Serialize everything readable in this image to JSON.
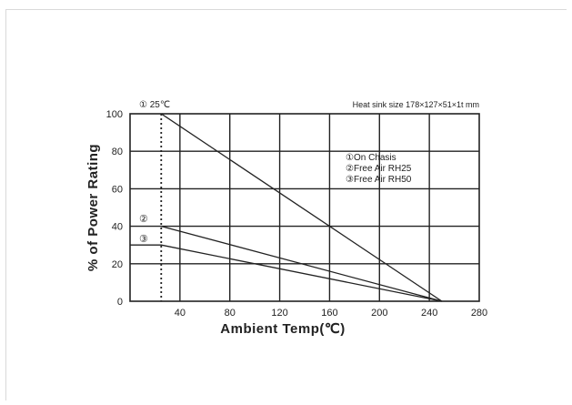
{
  "chart_data": {
    "type": "line",
    "title": "",
    "note": "Heat sink size 178×127×51×1t mm",
    "ref_label": "① 25℃",
    "ref_x": 25,
    "xlabel": "Ambient Temp(℃)",
    "ylabel": "% of Power Rating",
    "xlim": [
      0,
      280
    ],
    "ylim": [
      0,
      100
    ],
    "x_ticks": [
      40,
      80,
      120,
      160,
      200,
      240,
      280
    ],
    "y_ticks": [
      0,
      20,
      40,
      60,
      80,
      100
    ],
    "grid": true,
    "legend": {
      "placement": "upper-right",
      "entries": [
        "①On Chasis",
        "②Free Air RH25",
        "③Free Air RH50"
      ]
    },
    "series": [
      {
        "marker": "",
        "x": [
          25,
          250
        ],
        "y": [
          100,
          0
        ]
      },
      {
        "marker": "②",
        "x": [
          25,
          250
        ],
        "y": [
          40,
          0
        ]
      },
      {
        "marker": "③",
        "x": [
          0,
          25,
          250
        ],
        "y": [
          30,
          30,
          0
        ]
      }
    ]
  }
}
